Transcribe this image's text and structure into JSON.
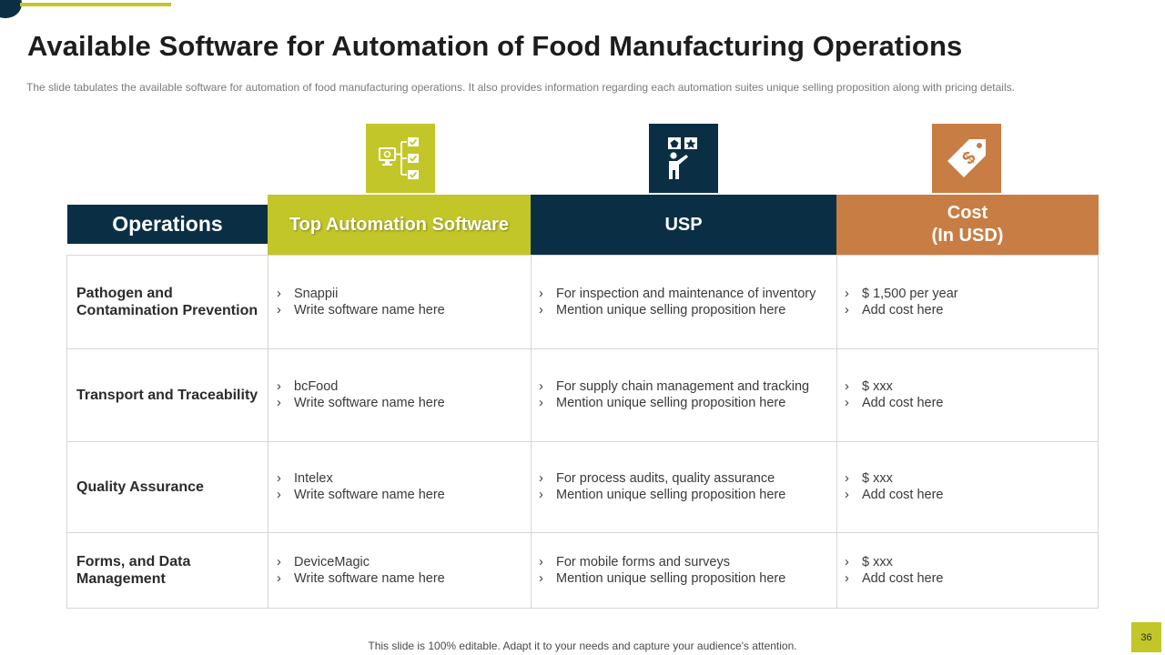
{
  "slide": {
    "title": "Available Software for Automation of Food Manufacturing Operations",
    "subtitle": "The slide tabulates the available  software for automation of food manufacturing  operations. It also provides  information  regarding  each automation suites unique  selling proposition  along with pricing details.",
    "footer": "This slide is 100% editable. Adapt it to your needs and capture your audience's attention.",
    "page_number": "36"
  },
  "colors": {
    "navy": "#0a2f45",
    "lime": "#c3c628",
    "orange": "#c77d43"
  },
  "icons": {
    "software": "flowchart-checklist-icon",
    "usp": "presenter-board-icon",
    "cost": "price-tag-dollar-icon"
  },
  "table": {
    "headers": {
      "operations": "Operations",
      "software": "Top Automation Software",
      "usp": "USP",
      "cost_line1": "Cost",
      "cost_line2": "(In USD)"
    },
    "rows": [
      {
        "operation": "Pathogen and Contamination Prevention",
        "software": [
          "Snappii",
          "Write software name here"
        ],
        "usp": [
          "For inspection and maintenance of inventory",
          "Mention unique selling proposition here"
        ],
        "cost": [
          "$ 1,500 per year",
          "Add cost here"
        ]
      },
      {
        "operation": "Transport and Traceability",
        "software": [
          "bcFood",
          "Write software name here"
        ],
        "usp": [
          "For supply chain management and tracking",
          "Mention unique selling proposition here"
        ],
        "cost": [
          "$ xxx",
          "Add cost here"
        ]
      },
      {
        "operation": "Quality Assurance",
        "software": [
          "Intelex",
          "Write software name here"
        ],
        "usp": [
          "For process audits, quality assurance",
          "Mention unique selling proposition here"
        ],
        "cost": [
          "$ xxx",
          "Add cost here"
        ]
      },
      {
        "operation": "Forms, and Data Management",
        "software": [
          "DeviceMagic",
          "Write software name here"
        ],
        "usp": [
          "For mobile forms and surveys",
          "Mention unique selling proposition here"
        ],
        "cost": [
          "$ xxx",
          "Add cost here"
        ]
      }
    ]
  }
}
